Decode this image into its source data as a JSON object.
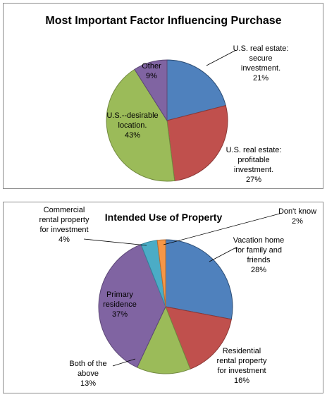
{
  "chart_data": [
    {
      "type": "pie",
      "title": "Most Important Factor Influencing Purchase",
      "slices": [
        {
          "label": [
            "U.S. real estate:",
            "secure",
            "investment."
          ],
          "value": 21,
          "value_label": "21%",
          "color": "#4f81bd",
          "stroke": "#2c4d75"
        },
        {
          "label": [
            "U.S. real estate:",
            "profitable",
            "investment."
          ],
          "value": 27,
          "value_label": "27%",
          "color": "#c0504d",
          "stroke": "#8c3836"
        },
        {
          "label": [
            "U.S.--desirable",
            "location."
          ],
          "value": 43,
          "value_label": "43%",
          "color": "#9bbb59",
          "stroke": "#71893f"
        },
        {
          "label": [
            "Other"
          ],
          "value": 9,
          "value_label": "9%",
          "color": "#8064a2",
          "stroke": "#5c4776"
        }
      ]
    },
    {
      "type": "pie",
      "title": "Intended Use of Property",
      "slices": [
        {
          "label": [
            "Vacation home",
            "for family and",
            "friends"
          ],
          "value": 28,
          "value_label": "28%",
          "color": "#4f81bd",
          "stroke": "#2c4d75"
        },
        {
          "label": [
            "Residential",
            "rental property",
            "for investment"
          ],
          "value": 16,
          "value_label": "16%",
          "color": "#c0504d",
          "stroke": "#8c3836"
        },
        {
          "label": [
            "Both of the",
            "above"
          ],
          "value": 13,
          "value_label": "13%",
          "color": "#9bbb59",
          "stroke": "#71893f"
        },
        {
          "label": [
            "Primary",
            "residence"
          ],
          "value": 37,
          "value_label": "37%",
          "color": "#8064a2",
          "stroke": "#5c4776"
        },
        {
          "label": [
            "Commercial",
            "rental property",
            "for investment"
          ],
          "value": 4,
          "value_label": "4%",
          "color": "#4bacc6",
          "stroke": "#31859c"
        },
        {
          "label": [
            "Don't know"
          ],
          "value": 2,
          "value_label": "2%",
          "color": "#f79646",
          "stroke": "#b66d31"
        }
      ]
    }
  ]
}
